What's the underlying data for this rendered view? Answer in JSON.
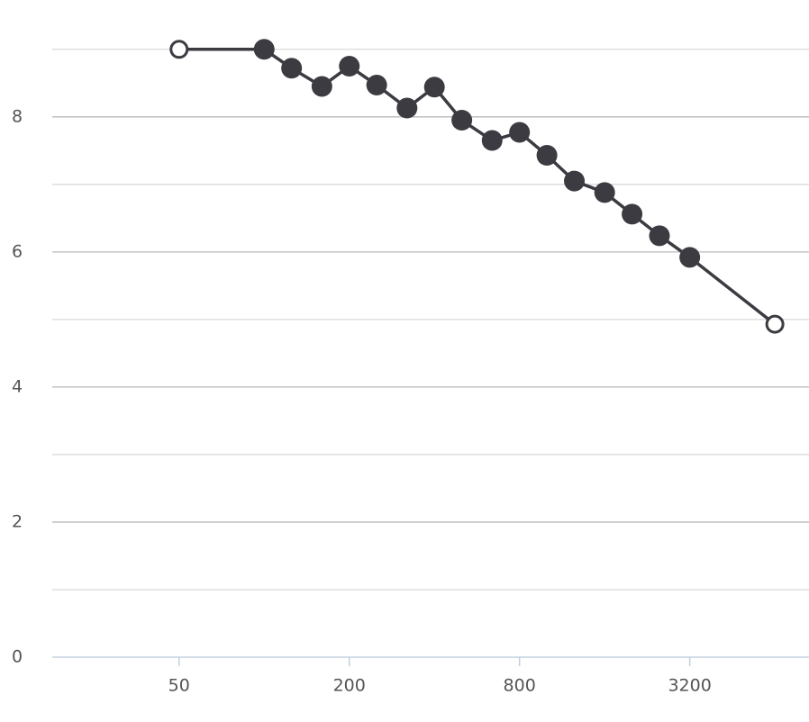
{
  "chart_data": {
    "type": "line",
    "x_scale": "log",
    "x": [
      50,
      100,
      125,
      160,
      200,
      250,
      320,
      400,
      500,
      640,
      800,
      1000,
      1250,
      1600,
      2000,
      2500,
      3200,
      6400
    ],
    "series": [
      {
        "color": "#3c3b41",
        "values": [
          9.0,
          9.0,
          8.72,
          8.45,
          8.75,
          8.47,
          8.13,
          8.44,
          7.95,
          7.65,
          7.77,
          7.43,
          7.05,
          6.88,
          6.56,
          6.24,
          5.92,
          4.93
        ],
        "open_markers": [
          0,
          17
        ]
      }
    ],
    "xlim": [
      17.8,
      8450
    ],
    "xticks": [
      50,
      200,
      800,
      3200
    ],
    "ylim": [
      0,
      9.73
    ],
    "yticks": [
      0,
      2,
      4,
      6,
      8
    ],
    "minor_yticks": [
      1,
      3,
      5,
      7,
      9
    ],
    "grid": true
  }
}
